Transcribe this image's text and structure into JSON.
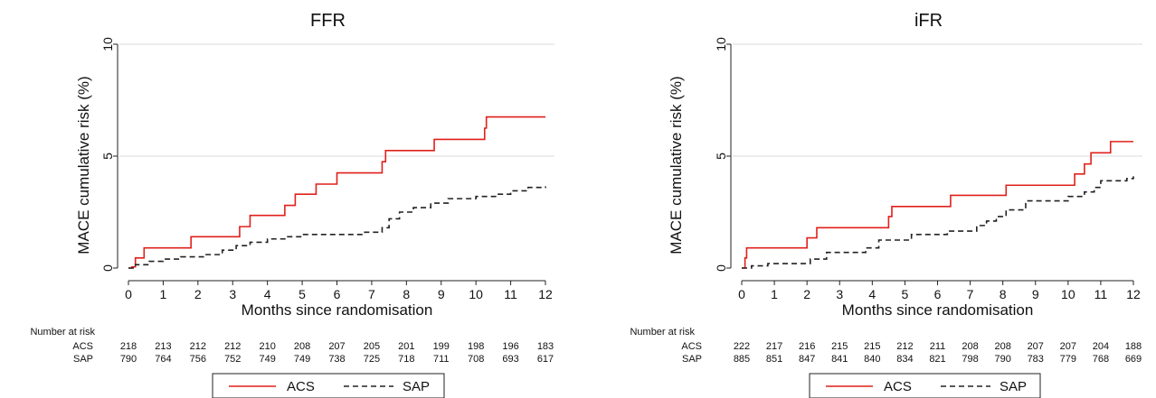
{
  "chart_data": [
    {
      "type": "line",
      "title": "FFR",
      "xlabel": "Months since randomisation",
      "ylabel": "MACE cumulative risk (%)",
      "xlim": [
        0,
        12
      ],
      "ylim": [
        0,
        10
      ],
      "xticks": [
        "0",
        "1",
        "2",
        "3",
        "4",
        "5",
        "6",
        "7",
        "8",
        "9",
        "10",
        "11",
        "12"
      ],
      "yticks": [
        "0",
        "5",
        "10"
      ],
      "grid": "horizontal",
      "legend_position": "bottom",
      "series": [
        {
          "name": "ACS",
          "color": "#e0201b",
          "style": "solid",
          "x": [
            0.1,
            0.2,
            0.45,
            1.8,
            3.2,
            3.5,
            4.5,
            4.8,
            5.4,
            6.0,
            7.3,
            7.4,
            8.8,
            10.25,
            10.3,
            12.0
          ],
          "y": [
            0.05,
            0.45,
            0.9,
            1.4,
            1.85,
            2.35,
            2.8,
            3.3,
            3.75,
            4.25,
            4.75,
            5.25,
            5.75,
            6.25,
            6.75,
            6.75
          ]
        },
        {
          "name": "SAP",
          "color": "#222222",
          "style": "dashed",
          "x": [
            0.2,
            0.6,
            1.0,
            1.5,
            2.2,
            2.7,
            3.1,
            3.5,
            4.0,
            4.5,
            5.0,
            6.8,
            7.3,
            7.5,
            7.8,
            8.2,
            8.7,
            9.2,
            10.0,
            10.6,
            11.0,
            11.5,
            12.0
          ],
          "y": [
            0.15,
            0.3,
            0.4,
            0.5,
            0.6,
            0.8,
            1.0,
            1.15,
            1.3,
            1.4,
            1.5,
            1.6,
            1.8,
            2.2,
            2.5,
            2.7,
            2.9,
            3.1,
            3.2,
            3.3,
            3.45,
            3.6,
            3.65
          ]
        }
      ],
      "risk_table": {
        "title": "Number at risk",
        "rows": [
          {
            "label": "ACS",
            "values": [
              "218",
              "213",
              "212",
              "212",
              "210",
              "208",
              "207",
              "205",
              "201",
              "199",
              "198",
              "196",
              "183"
            ]
          },
          {
            "label": "SAP",
            "values": [
              "790",
              "764",
              "756",
              "752",
              "749",
              "749",
              "738",
              "725",
              "718",
              "711",
              "708",
              "693",
              "617"
            ]
          }
        ]
      }
    },
    {
      "type": "line",
      "title": "iFR",
      "xlabel": "Months since randomisation",
      "ylabel": "MACE cumulative risk (%)",
      "xlim": [
        0,
        12
      ],
      "ylim": [
        0,
        10
      ],
      "xticks": [
        "0",
        "1",
        "2",
        "3",
        "4",
        "5",
        "6",
        "7",
        "8",
        "9",
        "10",
        "11",
        "12"
      ],
      "yticks": [
        "0",
        "5",
        "10"
      ],
      "grid": "horizontal",
      "legend_position": "bottom",
      "series": [
        {
          "name": "ACS",
          "color": "#e0201b",
          "style": "solid",
          "x": [
            0.1,
            0.15,
            2.0,
            2.3,
            4.5,
            4.6,
            6.4,
            8.1,
            10.2,
            10.5,
            10.7,
            11.3,
            12.0
          ],
          "y": [
            0.45,
            0.9,
            1.35,
            1.8,
            2.3,
            2.75,
            3.25,
            3.7,
            4.2,
            4.65,
            5.15,
            5.65,
            5.65
          ]
        },
        {
          "name": "SAP",
          "color": "#222222",
          "style": "dashed",
          "x": [
            0.3,
            0.8,
            2.1,
            2.6,
            3.8,
            4.2,
            5.2,
            6.3,
            7.2,
            7.5,
            7.8,
            8.1,
            8.7,
            10.0,
            10.5,
            10.8,
            11.0,
            11.8,
            12.0
          ],
          "y": [
            0.1,
            0.2,
            0.4,
            0.7,
            0.9,
            1.25,
            1.5,
            1.65,
            1.9,
            2.1,
            2.3,
            2.6,
            3.0,
            3.2,
            3.4,
            3.6,
            3.9,
            4.0,
            4.1
          ]
        }
      ],
      "risk_table": {
        "title": "Number at risk",
        "rows": [
          {
            "label": "ACS",
            "values": [
              "222",
              "217",
              "216",
              "215",
              "215",
              "212",
              "211",
              "208",
              "208",
              "207",
              "207",
              "204",
              "188"
            ]
          },
          {
            "label": "SAP",
            "values": [
              "885",
              "851",
              "847",
              "841",
              "840",
              "834",
              "821",
              "798",
              "790",
              "783",
              "779",
              "768",
              "669"
            ]
          }
        ]
      }
    }
  ]
}
